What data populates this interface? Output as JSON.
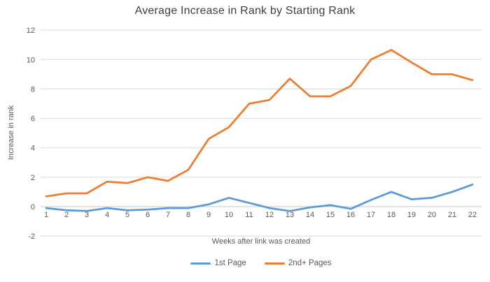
{
  "chart_data": {
    "type": "line",
    "title": "Average Increase in Rank by Starting Rank",
    "xlabel": "Weeks after link was created",
    "ylabel": "Increase in rank",
    "x": [
      "1",
      "2",
      "3",
      "4",
      "5",
      "6",
      "7",
      "8",
      "9",
      "10",
      "11",
      "12",
      "13",
      "14",
      "15",
      "16",
      "17",
      "18",
      "19",
      "20",
      "21",
      "22"
    ],
    "series": [
      {
        "name": "1st Page",
        "color": "#5B9BD5",
        "values": [
          -0.1,
          -0.25,
          -0.3,
          -0.1,
          -0.25,
          -0.2,
          -0.1,
          -0.1,
          0.15,
          0.6,
          0.25,
          -0.1,
          -0.3,
          -0.05,
          0.1,
          -0.15,
          0.45,
          1.0,
          0.5,
          0.6,
          1.0,
          1.5
        ]
      },
      {
        "name": "2nd+ Pages",
        "color": "#ED7D31",
        "values": [
          0.7,
          0.9,
          0.9,
          1.7,
          1.6,
          2.0,
          1.75,
          2.5,
          4.6,
          5.4,
          7.0,
          7.25,
          8.7,
          7.5,
          7.5,
          8.2,
          10.0,
          10.65,
          9.8,
          9.0,
          9.0,
          8.6
        ]
      }
    ],
    "ylim": [
      -2,
      12
    ],
    "yticks": [
      -2,
      0,
      2,
      4,
      6,
      8,
      10,
      12
    ],
    "grid": true,
    "legend_position": "bottom",
    "colors": {
      "gridline": "#d9d9d9",
      "zero_axis": "#c9c9c9",
      "axis_text": "#595959",
      "title_text": "#3f3f3f",
      "background": "#ffffff"
    }
  }
}
